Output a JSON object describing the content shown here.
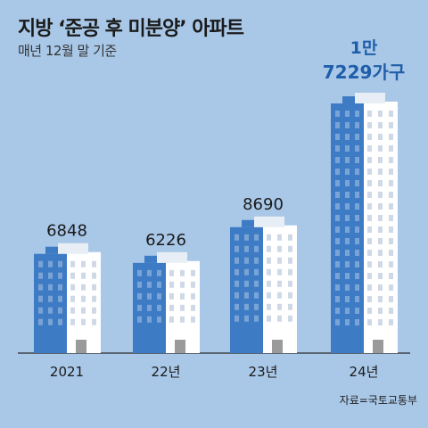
{
  "header": {
    "title": "지방 ‘준공 후 미분양’ 아파트",
    "subtitle": "매년 12월 말 기준"
  },
  "source": "자료=국토교통부",
  "colors": {
    "background": "#a9c8e8",
    "building_dark": "#3d7bc4",
    "building_light": "#ffffff",
    "highlight_label": "#1f5ea8"
  },
  "chart_data": {
    "type": "bar",
    "categories": [
      "2021",
      "22년",
      "23년",
      "24년"
    ],
    "values": [
      6848,
      6226,
      8690,
      17229
    ],
    "data_labels": [
      "6848",
      "6226",
      "8690",
      "1만\n7229가구"
    ],
    "ylim": [
      0,
      18000
    ]
  }
}
